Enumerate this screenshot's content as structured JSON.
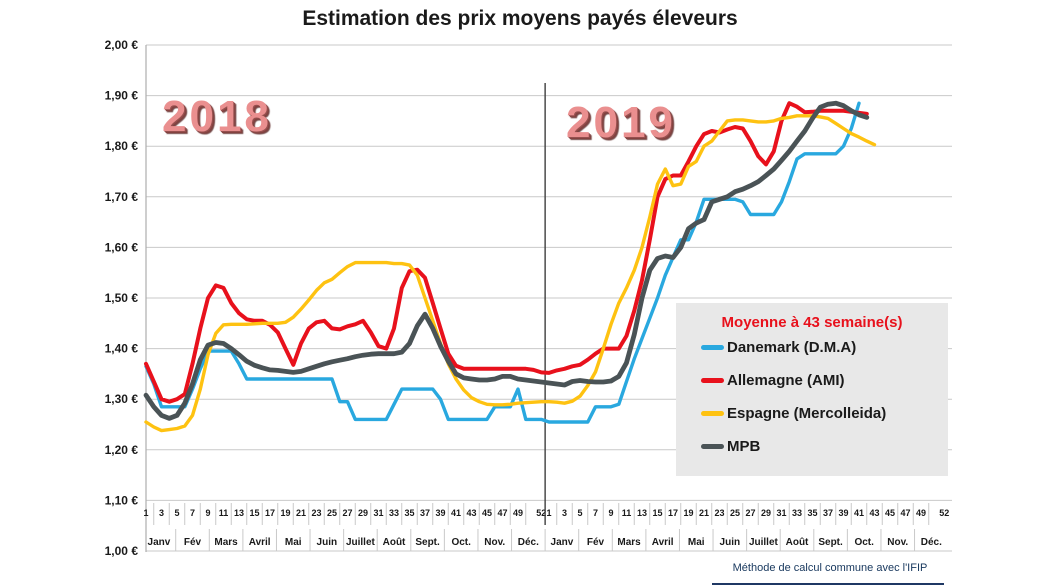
{
  "title": "Estimation des prix moyens payés éleveurs",
  "caption": "Méthode de calcul commune avec l'IFIP",
  "colors": {
    "danemark": "#29A8DF",
    "allemagne": "#E8111C",
    "espagne": "#FEC211",
    "mpb": "#4A5356",
    "gridline": "#C9C9C9",
    "axis_border": "#ADADAD",
    "year_divider": "#3F3F3F",
    "legend_background": "#E8E8E8",
    "legend_title": "#E8111C",
    "caption": "#17375D",
    "year_watermark": "#EA8F8F"
  },
  "legend": {
    "title": "Moyenne à  43 semaine(s)",
    "items": [
      {
        "label": "Danemark (D.M.A)",
        "color": "#29A8DF"
      },
      {
        "label": "Allemagne (AMI)",
        "color": "#E8111C"
      },
      {
        "label": "Espagne (Mercolleida)",
        "color": "#FEC211"
      },
      {
        "label": "MPB",
        "color": "#4A5356"
      }
    ]
  },
  "y_axis": {
    "labels": [
      "2,00 €",
      "1,90 €",
      "1,80 €",
      "1,70 €",
      "1,60 €",
      "1,50 €",
      "1,40 €",
      "1,30 €",
      "1,20 €",
      "1,10 €",
      "1,00 €"
    ],
    "values": [
      2.0,
      1.9,
      1.8,
      1.7,
      1.6,
      1.5,
      1.4,
      1.3,
      1.2,
      1.1,
      1.0
    ]
  },
  "x_axis": {
    "years": [
      "2018",
      "2019"
    ],
    "week_ticks": [
      1,
      3,
      5,
      7,
      9,
      11,
      13,
      15,
      17,
      19,
      21,
      23,
      25,
      27,
      29,
      31,
      33,
      35,
      37,
      39,
      41,
      43,
      45,
      47,
      49,
      52
    ],
    "months": [
      "Janv",
      "Fév",
      "Mars",
      "Avril",
      "Mai",
      "Juin",
      "Juillet",
      "Août",
      "Sept.",
      "Oct.",
      "Nov.",
      "Déc."
    ]
  },
  "chart_data": {
    "type": "line",
    "title": "Estimation des prix moyens payés éleveurs",
    "x_unit": "semaine",
    "weeks_per_year": 52,
    "weeks_2018": 52,
    "weeks_2019": 43,
    "ylim": [
      1.0,
      2.0
    ],
    "y_step": 0.1,
    "grid": true,
    "legend_position": "right-middle",
    "year_labels": [
      "2018",
      "2019"
    ],
    "currency": "EUR/kg",
    "series": [
      {
        "name": "Danemark (D.M.A)",
        "color": "#29A8DF",
        "width": 3.4,
        "values": [
          1.365,
          1.33,
          1.285,
          1.285,
          1.285,
          1.285,
          1.32,
          1.36,
          1.395,
          1.395,
          1.395,
          1.395,
          1.37,
          1.34,
          1.34,
          1.34,
          1.34,
          1.34,
          1.34,
          1.34,
          1.34,
          1.34,
          1.34,
          1.34,
          1.34,
          1.295,
          1.295,
          1.26,
          1.26,
          1.26,
          1.26,
          1.26,
          1.29,
          1.32,
          1.32,
          1.32,
          1.32,
          1.32,
          1.3,
          1.26,
          1.26,
          1.26,
          1.26,
          1.26,
          1.26,
          1.285,
          1.285,
          1.285,
          1.32,
          1.26,
          1.26,
          1.26,
          1.255,
          1.255,
          1.255,
          1.255,
          1.255,
          1.255,
          1.285,
          1.285,
          1.285,
          1.29,
          1.335,
          1.38,
          1.42,
          1.46,
          1.5,
          1.545,
          1.58,
          1.615,
          1.615,
          1.65,
          1.695,
          1.695,
          1.695,
          1.695,
          1.695,
          1.69,
          1.665,
          1.665,
          1.665,
          1.665,
          1.69,
          1.73,
          1.775,
          1.785,
          1.785,
          1.785,
          1.785,
          1.785,
          1.8,
          1.835,
          1.885,
          null,
          null
        ]
      },
      {
        "name": "Allemagne (AMI)",
        "color": "#E8111C",
        "width": 4.0,
        "values": [
          1.37,
          1.335,
          1.3,
          1.295,
          1.3,
          1.31,
          1.37,
          1.44,
          1.5,
          1.525,
          1.52,
          1.49,
          1.47,
          1.458,
          1.455,
          1.455,
          1.447,
          1.432,
          1.4,
          1.368,
          1.41,
          1.44,
          1.452,
          1.455,
          1.44,
          1.438,
          1.444,
          1.448,
          1.455,
          1.432,
          1.405,
          1.4,
          1.44,
          1.52,
          1.553,
          1.556,
          1.54,
          1.49,
          1.44,
          1.39,
          1.366,
          1.36,
          1.36,
          1.36,
          1.36,
          1.36,
          1.36,
          1.36,
          1.36,
          1.36,
          1.358,
          1.353,
          1.352,
          1.357,
          1.36,
          1.365,
          1.368,
          1.378,
          1.39,
          1.4,
          1.4,
          1.4,
          1.425,
          1.475,
          1.535,
          1.615,
          1.7,
          1.735,
          1.742,
          1.742,
          1.77,
          1.8,
          1.824,
          1.83,
          1.827,
          1.833,
          1.838,
          1.835,
          1.81,
          1.78,
          1.764,
          1.79,
          1.85,
          1.885,
          1.878,
          1.867,
          1.868,
          1.87,
          1.87,
          1.87,
          1.87,
          1.868,
          1.866,
          1.864,
          null
        ]
      },
      {
        "name": "Espagne (Mercolleida)",
        "color": "#FEC211",
        "width": 3.4,
        "values": [
          1.255,
          1.245,
          1.238,
          1.24,
          1.242,
          1.247,
          1.268,
          1.32,
          1.388,
          1.43,
          1.447,
          1.448,
          1.448,
          1.448,
          1.449,
          1.45,
          1.45,
          1.45,
          1.452,
          1.462,
          1.478,
          1.496,
          1.515,
          1.53,
          1.537,
          1.55,
          1.562,
          1.57,
          1.57,
          1.57,
          1.57,
          1.57,
          1.568,
          1.568,
          1.565,
          1.545,
          1.5,
          1.455,
          1.41,
          1.37,
          1.34,
          1.318,
          1.303,
          1.295,
          1.29,
          1.289,
          1.289,
          1.29,
          1.292,
          1.293,
          1.294,
          1.295,
          1.295,
          1.294,
          1.292,
          1.296,
          1.306,
          1.327,
          1.354,
          1.4,
          1.448,
          1.49,
          1.52,
          1.555,
          1.6,
          1.66,
          1.725,
          1.755,
          1.722,
          1.725,
          1.76,
          1.77,
          1.8,
          1.81,
          1.83,
          1.85,
          1.852,
          1.852,
          1.85,
          1.848,
          1.848,
          1.85,
          1.855,
          1.857,
          1.86,
          1.86,
          1.86,
          1.858,
          1.855,
          1.845,
          1.835,
          1.825,
          1.818,
          1.81,
          1.803
        ]
      },
      {
        "name": "MPB",
        "color": "#4A5356",
        "width": 4.8,
        "values": [
          1.308,
          1.285,
          1.268,
          1.262,
          1.268,
          1.292,
          1.33,
          1.378,
          1.407,
          1.412,
          1.41,
          1.4,
          1.388,
          1.375,
          1.367,
          1.362,
          1.358,
          1.357,
          1.355,
          1.353,
          1.355,
          1.36,
          1.365,
          1.37,
          1.374,
          1.377,
          1.38,
          1.384,
          1.387,
          1.389,
          1.39,
          1.39,
          1.39,
          1.393,
          1.41,
          1.445,
          1.468,
          1.44,
          1.405,
          1.375,
          1.35,
          1.342,
          1.34,
          1.338,
          1.338,
          1.34,
          1.345,
          1.345,
          1.34,
          1.338,
          1.336,
          1.334,
          1.332,
          1.33,
          1.328,
          1.335,
          1.337,
          1.335,
          1.334,
          1.334,
          1.336,
          1.345,
          1.372,
          1.428,
          1.5,
          1.555,
          1.578,
          1.583,
          1.58,
          1.6,
          1.637,
          1.648,
          1.655,
          1.69,
          1.695,
          1.7,
          1.71,
          1.715,
          1.722,
          1.73,
          1.742,
          1.755,
          1.772,
          1.79,
          1.81,
          1.83,
          1.855,
          1.877,
          1.883,
          1.885,
          1.88,
          1.87,
          1.862,
          1.857,
          null
        ]
      }
    ]
  }
}
